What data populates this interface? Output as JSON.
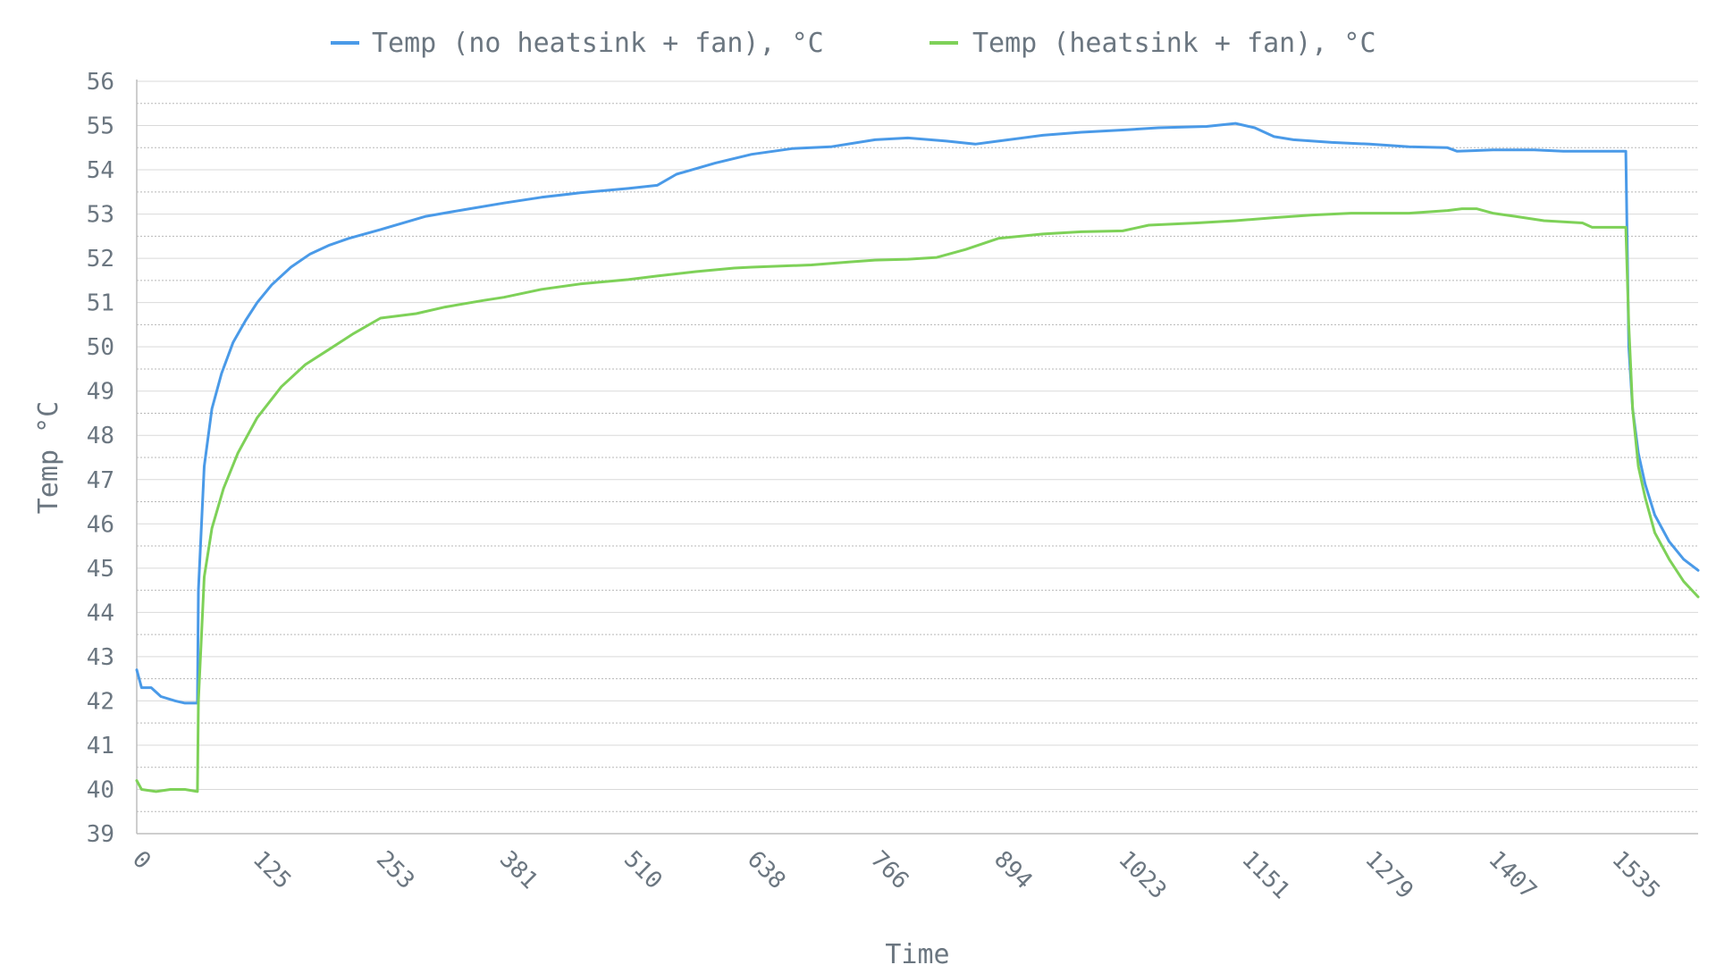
{
  "chart_data": {
    "type": "line",
    "xlabel": "Time",
    "ylabel": "Temp °C",
    "xlim": [
      0,
      1620
    ],
    "ylim": [
      39,
      56
    ],
    "x_ticks": [
      "0",
      "125",
      "253",
      "381",
      "510",
      "638",
      "766",
      "894",
      "1023",
      "1151",
      "1279",
      "1407",
      "1535"
    ],
    "y_ticks": [
      39,
      40,
      41,
      42,
      43,
      44,
      45,
      46,
      47,
      48,
      49,
      50,
      51,
      52,
      53,
      54,
      55,
      56
    ],
    "grid": true,
    "legend": "top",
    "series": [
      {
        "name": "Temp (no heatsink + fan), °C",
        "color": "#4a9ae8",
        "points": [
          [
            0,
            42.7
          ],
          [
            5,
            42.3
          ],
          [
            15,
            42.3
          ],
          [
            25,
            42.1
          ],
          [
            40,
            42.0
          ],
          [
            50,
            41.95
          ],
          [
            63,
            41.95
          ],
          [
            64,
            44.5
          ],
          [
            70,
            47.3
          ],
          [
            78,
            48.6
          ],
          [
            88,
            49.4
          ],
          [
            100,
            50.1
          ],
          [
            113,
            50.6
          ],
          [
            125,
            51.0
          ],
          [
            140,
            51.4
          ],
          [
            160,
            51.8
          ],
          [
            180,
            52.1
          ],
          [
            200,
            52.3
          ],
          [
            220,
            52.45
          ],
          [
            253,
            52.65
          ],
          [
            300,
            52.95
          ],
          [
            340,
            53.1
          ],
          [
            381,
            53.25
          ],
          [
            420,
            53.38
          ],
          [
            460,
            53.48
          ],
          [
            510,
            53.58
          ],
          [
            540,
            53.65
          ],
          [
            560,
            53.9
          ],
          [
            600,
            54.15
          ],
          [
            638,
            54.35
          ],
          [
            680,
            54.48
          ],
          [
            720,
            54.52
          ],
          [
            766,
            54.68
          ],
          [
            800,
            54.72
          ],
          [
            840,
            54.65
          ],
          [
            870,
            54.58
          ],
          [
            894,
            54.65
          ],
          [
            940,
            54.78
          ],
          [
            980,
            54.85
          ],
          [
            1023,
            54.9
          ],
          [
            1060,
            54.95
          ],
          [
            1110,
            54.98
          ],
          [
            1140,
            55.05
          ],
          [
            1160,
            54.95
          ],
          [
            1180,
            54.75
          ],
          [
            1200,
            54.68
          ],
          [
            1240,
            54.62
          ],
          [
            1279,
            54.58
          ],
          [
            1320,
            54.52
          ],
          [
            1360,
            54.5
          ],
          [
            1370,
            54.42
          ],
          [
            1407,
            54.45
          ],
          [
            1450,
            54.45
          ],
          [
            1480,
            54.42
          ],
          [
            1535,
            54.42
          ],
          [
            1545,
            54.42
          ],
          [
            1548,
            50.0
          ],
          [
            1552,
            48.6
          ],
          [
            1558,
            47.6
          ],
          [
            1565,
            46.9
          ],
          [
            1575,
            46.2
          ],
          [
            1590,
            45.6
          ],
          [
            1605,
            45.2
          ],
          [
            1620,
            44.95
          ]
        ]
      },
      {
        "name": "Temp (heatsink + fan), °C",
        "color": "#7ed158",
        "points": [
          [
            0,
            40.2
          ],
          [
            5,
            40.0
          ],
          [
            20,
            39.95
          ],
          [
            35,
            40.0
          ],
          [
            50,
            40.0
          ],
          [
            63,
            39.95
          ],
          [
            64,
            42.0
          ],
          [
            70,
            44.8
          ],
          [
            78,
            45.9
          ],
          [
            90,
            46.8
          ],
          [
            105,
            47.6
          ],
          [
            125,
            48.4
          ],
          [
            150,
            49.1
          ],
          [
            175,
            49.6
          ],
          [
            200,
            49.95
          ],
          [
            225,
            50.3
          ],
          [
            253,
            50.65
          ],
          [
            290,
            50.75
          ],
          [
            320,
            50.9
          ],
          [
            360,
            51.05
          ],
          [
            381,
            51.12
          ],
          [
            420,
            51.3
          ],
          [
            460,
            51.42
          ],
          [
            510,
            51.52
          ],
          [
            540,
            51.6
          ],
          [
            580,
            51.7
          ],
          [
            620,
            51.78
          ],
          [
            638,
            51.8
          ],
          [
            700,
            51.85
          ],
          [
            740,
            51.92
          ],
          [
            766,
            51.96
          ],
          [
            800,
            51.98
          ],
          [
            830,
            52.02
          ],
          [
            860,
            52.2
          ],
          [
            894,
            52.45
          ],
          [
            940,
            52.55
          ],
          [
            980,
            52.6
          ],
          [
            1023,
            52.62
          ],
          [
            1050,
            52.75
          ],
          [
            1100,
            52.8
          ],
          [
            1140,
            52.85
          ],
          [
            1180,
            52.92
          ],
          [
            1220,
            52.98
          ],
          [
            1260,
            53.02
          ],
          [
            1279,
            53.02
          ],
          [
            1320,
            53.02
          ],
          [
            1360,
            53.08
          ],
          [
            1375,
            53.12
          ],
          [
            1390,
            53.12
          ],
          [
            1407,
            53.02
          ],
          [
            1430,
            52.95
          ],
          [
            1460,
            52.85
          ],
          [
            1500,
            52.8
          ],
          [
            1510,
            52.7
          ],
          [
            1540,
            52.7
          ],
          [
            1545,
            52.7
          ],
          [
            1548,
            50.5
          ],
          [
            1552,
            48.6
          ],
          [
            1558,
            47.3
          ],
          [
            1565,
            46.6
          ],
          [
            1575,
            45.8
          ],
          [
            1590,
            45.2
          ],
          [
            1605,
            44.7
          ],
          [
            1620,
            44.35
          ]
        ]
      }
    ]
  }
}
